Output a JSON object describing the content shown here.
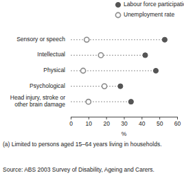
{
  "chart_data": {
    "type": "dot",
    "orientation": "horizontal",
    "categories": [
      "Sensory or speech",
      "Intellectual",
      "Physical",
      "Psychological",
      "Head injury, stroke or other brain damage"
    ],
    "series": [
      {
        "name": "Labour force participation rate",
        "color": "#555555",
        "marker": "circle",
        "values": [
          53,
          42,
          48,
          28,
          34
        ]
      },
      {
        "name": "Unemployment rate",
        "color": "#8a8a8a",
        "marker": "circle-open",
        "values": [
          9,
          17,
          7,
          19,
          10
        ]
      }
    ],
    "x_label": "%",
    "xlim": [
      0,
      60
    ],
    "xticks": [
      0,
      10,
      20,
      30,
      40,
      50,
      60
    ],
    "grid": false,
    "legend": "top-right",
    "line_style": "dashed",
    "footnote": "(a) Limited to persons aged 15–64 years living in households.",
    "source": "Source: ABS 2003 Survey of Disability, Ageing and Carers."
  }
}
